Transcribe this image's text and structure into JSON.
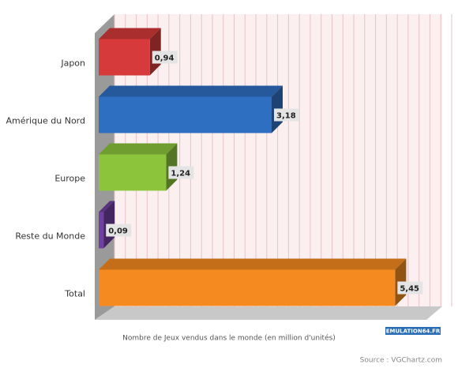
{
  "chart_data": {
    "type": "bar",
    "orientation": "horizontal",
    "categories": [
      "Japon",
      "Amérique du Nord",
      "Europe",
      "Reste du Monde",
      "Total"
    ],
    "values": [
      0.94,
      3.18,
      1.24,
      0.09,
      5.45
    ],
    "value_labels": [
      "0,94",
      "3,18",
      "1,24",
      "0,09",
      "5,45"
    ],
    "colors": [
      "#d63a3a",
      "#2f6fc2",
      "#8cc43c",
      "#7040a0",
      "#f58a20"
    ],
    "xlabel": "Nombre de Jeux vendus dans le monde (en million d'unités)",
    "xlim": [
      0,
      6.2
    ],
    "xticks": [
      0,
      0.2,
      0.4,
      0.6,
      0.8,
      1,
      1.2,
      1.4,
      1.6,
      1.8,
      2,
      2.2,
      2.4,
      2.6,
      2.8,
      3,
      3.2,
      3.4,
      3.6,
      3.8,
      4,
      4.2,
      4.4,
      4.6,
      4.8,
      5,
      5.2,
      5.4,
      5.6,
      5.8,
      6,
      6.2
    ],
    "grid": true,
    "watermark": "EMULATION64.FR",
    "source": "Source : VGChartz.com"
  }
}
